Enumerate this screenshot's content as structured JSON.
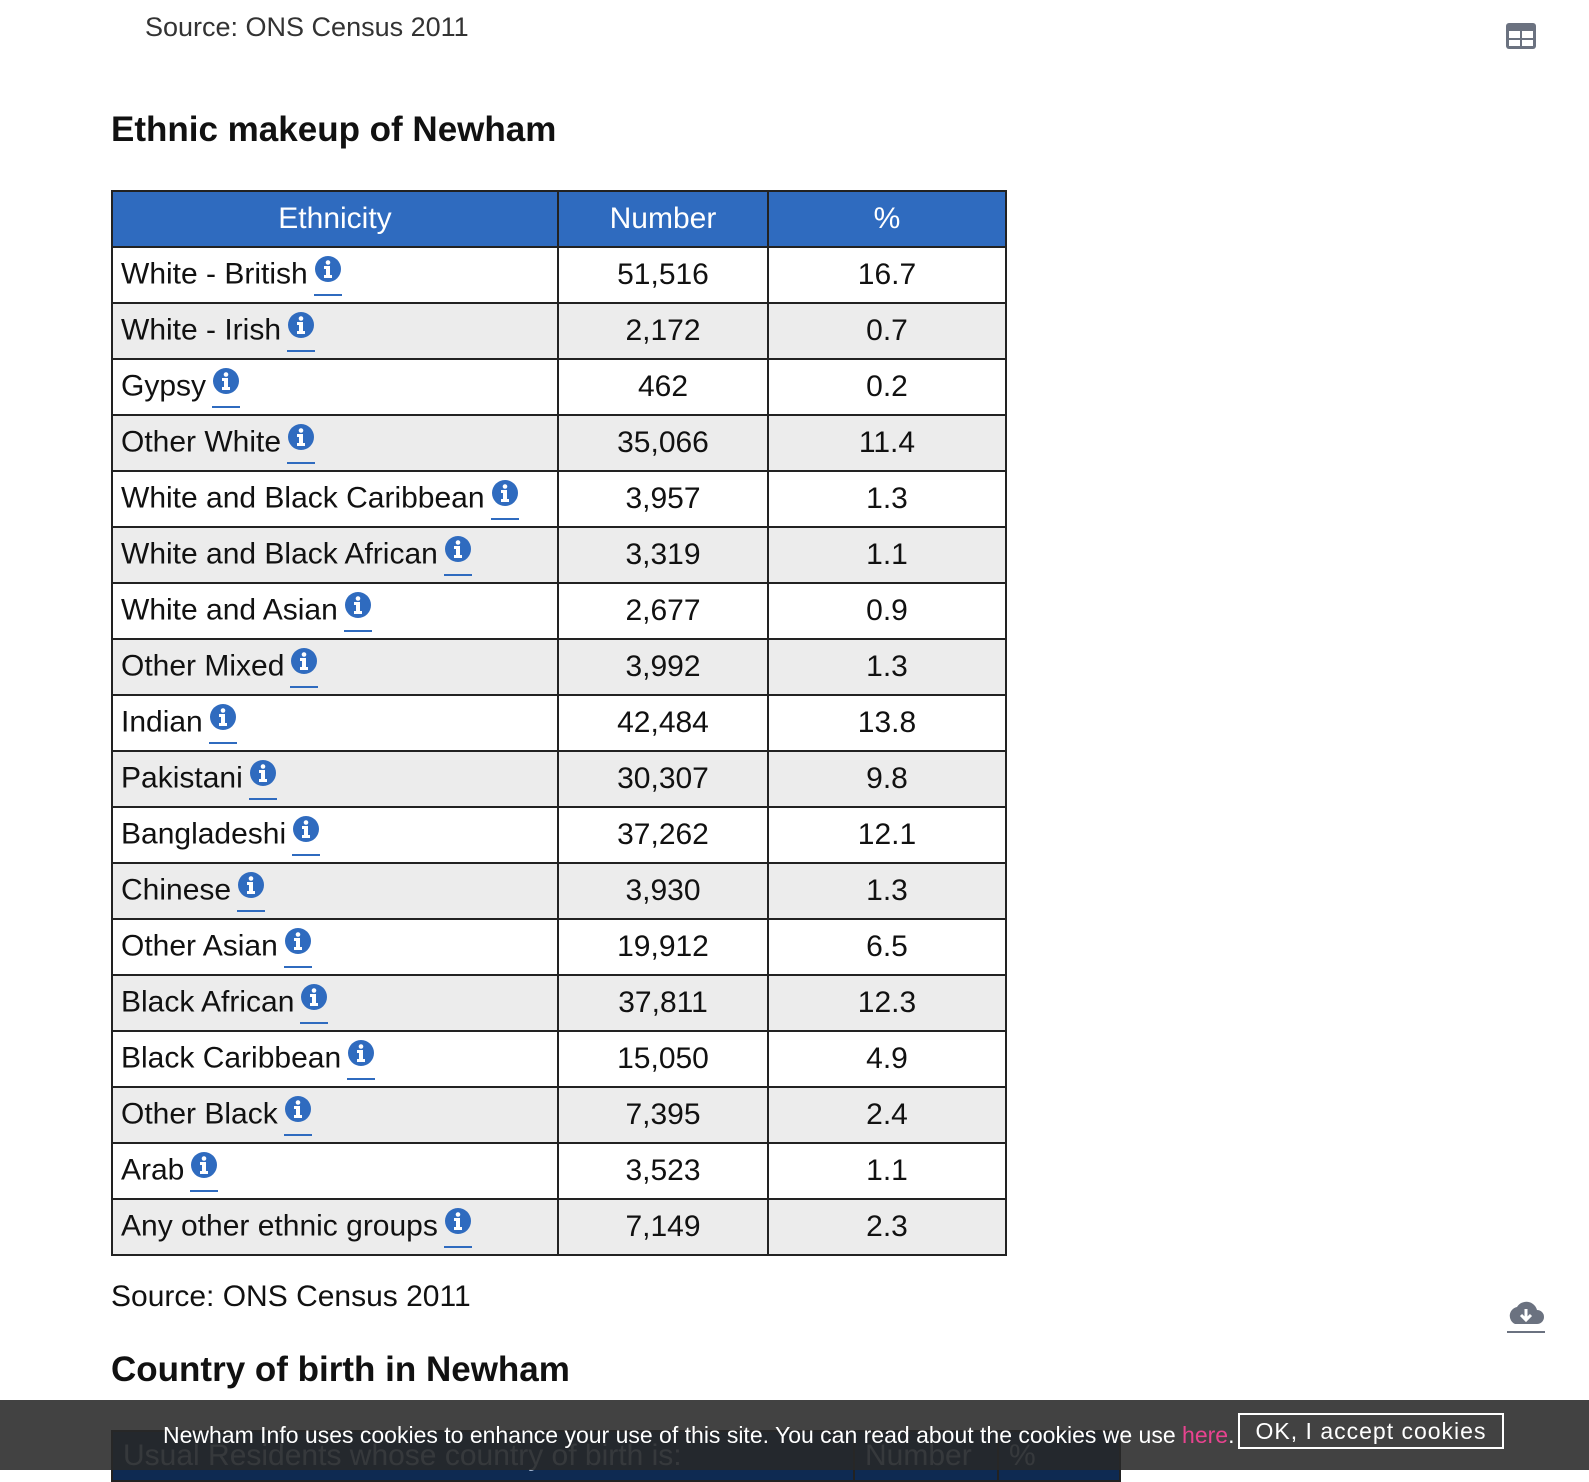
{
  "top_source": "Source: ONS Census 2011",
  "title": "Ethnic makeup of Newham",
  "table": {
    "headers": [
      "Ethnicity",
      "Number",
      "%"
    ],
    "rows": [
      [
        "White - British",
        "51,516",
        "16.7"
      ],
      [
        "White - Irish",
        "2,172",
        "0.7"
      ],
      [
        "Gypsy",
        "462",
        "0.2"
      ],
      [
        "Other White",
        "35,066",
        "11.4"
      ],
      [
        "White and Black Caribbean",
        "3,957",
        "1.3"
      ],
      [
        "White and Black African",
        "3,319",
        "1.1"
      ],
      [
        "White and Asian",
        "2,677",
        "0.9"
      ],
      [
        "Other Mixed",
        "3,992",
        "1.3"
      ],
      [
        "Indian",
        "42,484",
        "13.8"
      ],
      [
        "Pakistani",
        "30,307",
        "9.8"
      ],
      [
        "Bangladeshi",
        "37,262",
        "12.1"
      ],
      [
        "Chinese",
        "3,930",
        "1.3"
      ],
      [
        "Other Asian",
        "19,912",
        "6.5"
      ],
      [
        "Black African",
        "37,811",
        "12.3"
      ],
      [
        "Black Caribbean",
        "15,050",
        "4.9"
      ],
      [
        "Other Black",
        "7,395",
        "2.4"
      ],
      [
        "Arab",
        "3,523",
        "1.1"
      ],
      [
        "Any other ethnic groups",
        "7,149",
        "2.3"
      ]
    ]
  },
  "source": "Source: ONS Census 2011",
  "title2": "Country of birth in Newham",
  "table2": {
    "headers": [
      "Usual Residents whose country of birth is:",
      "Number",
      "%"
    ]
  },
  "cookie_banner": {
    "text": "Newham Info uses cookies to enhance your use of this site. You can read about the cookies we use ",
    "link": "here",
    "after": ".",
    "button": "OK, I accept cookies"
  }
}
